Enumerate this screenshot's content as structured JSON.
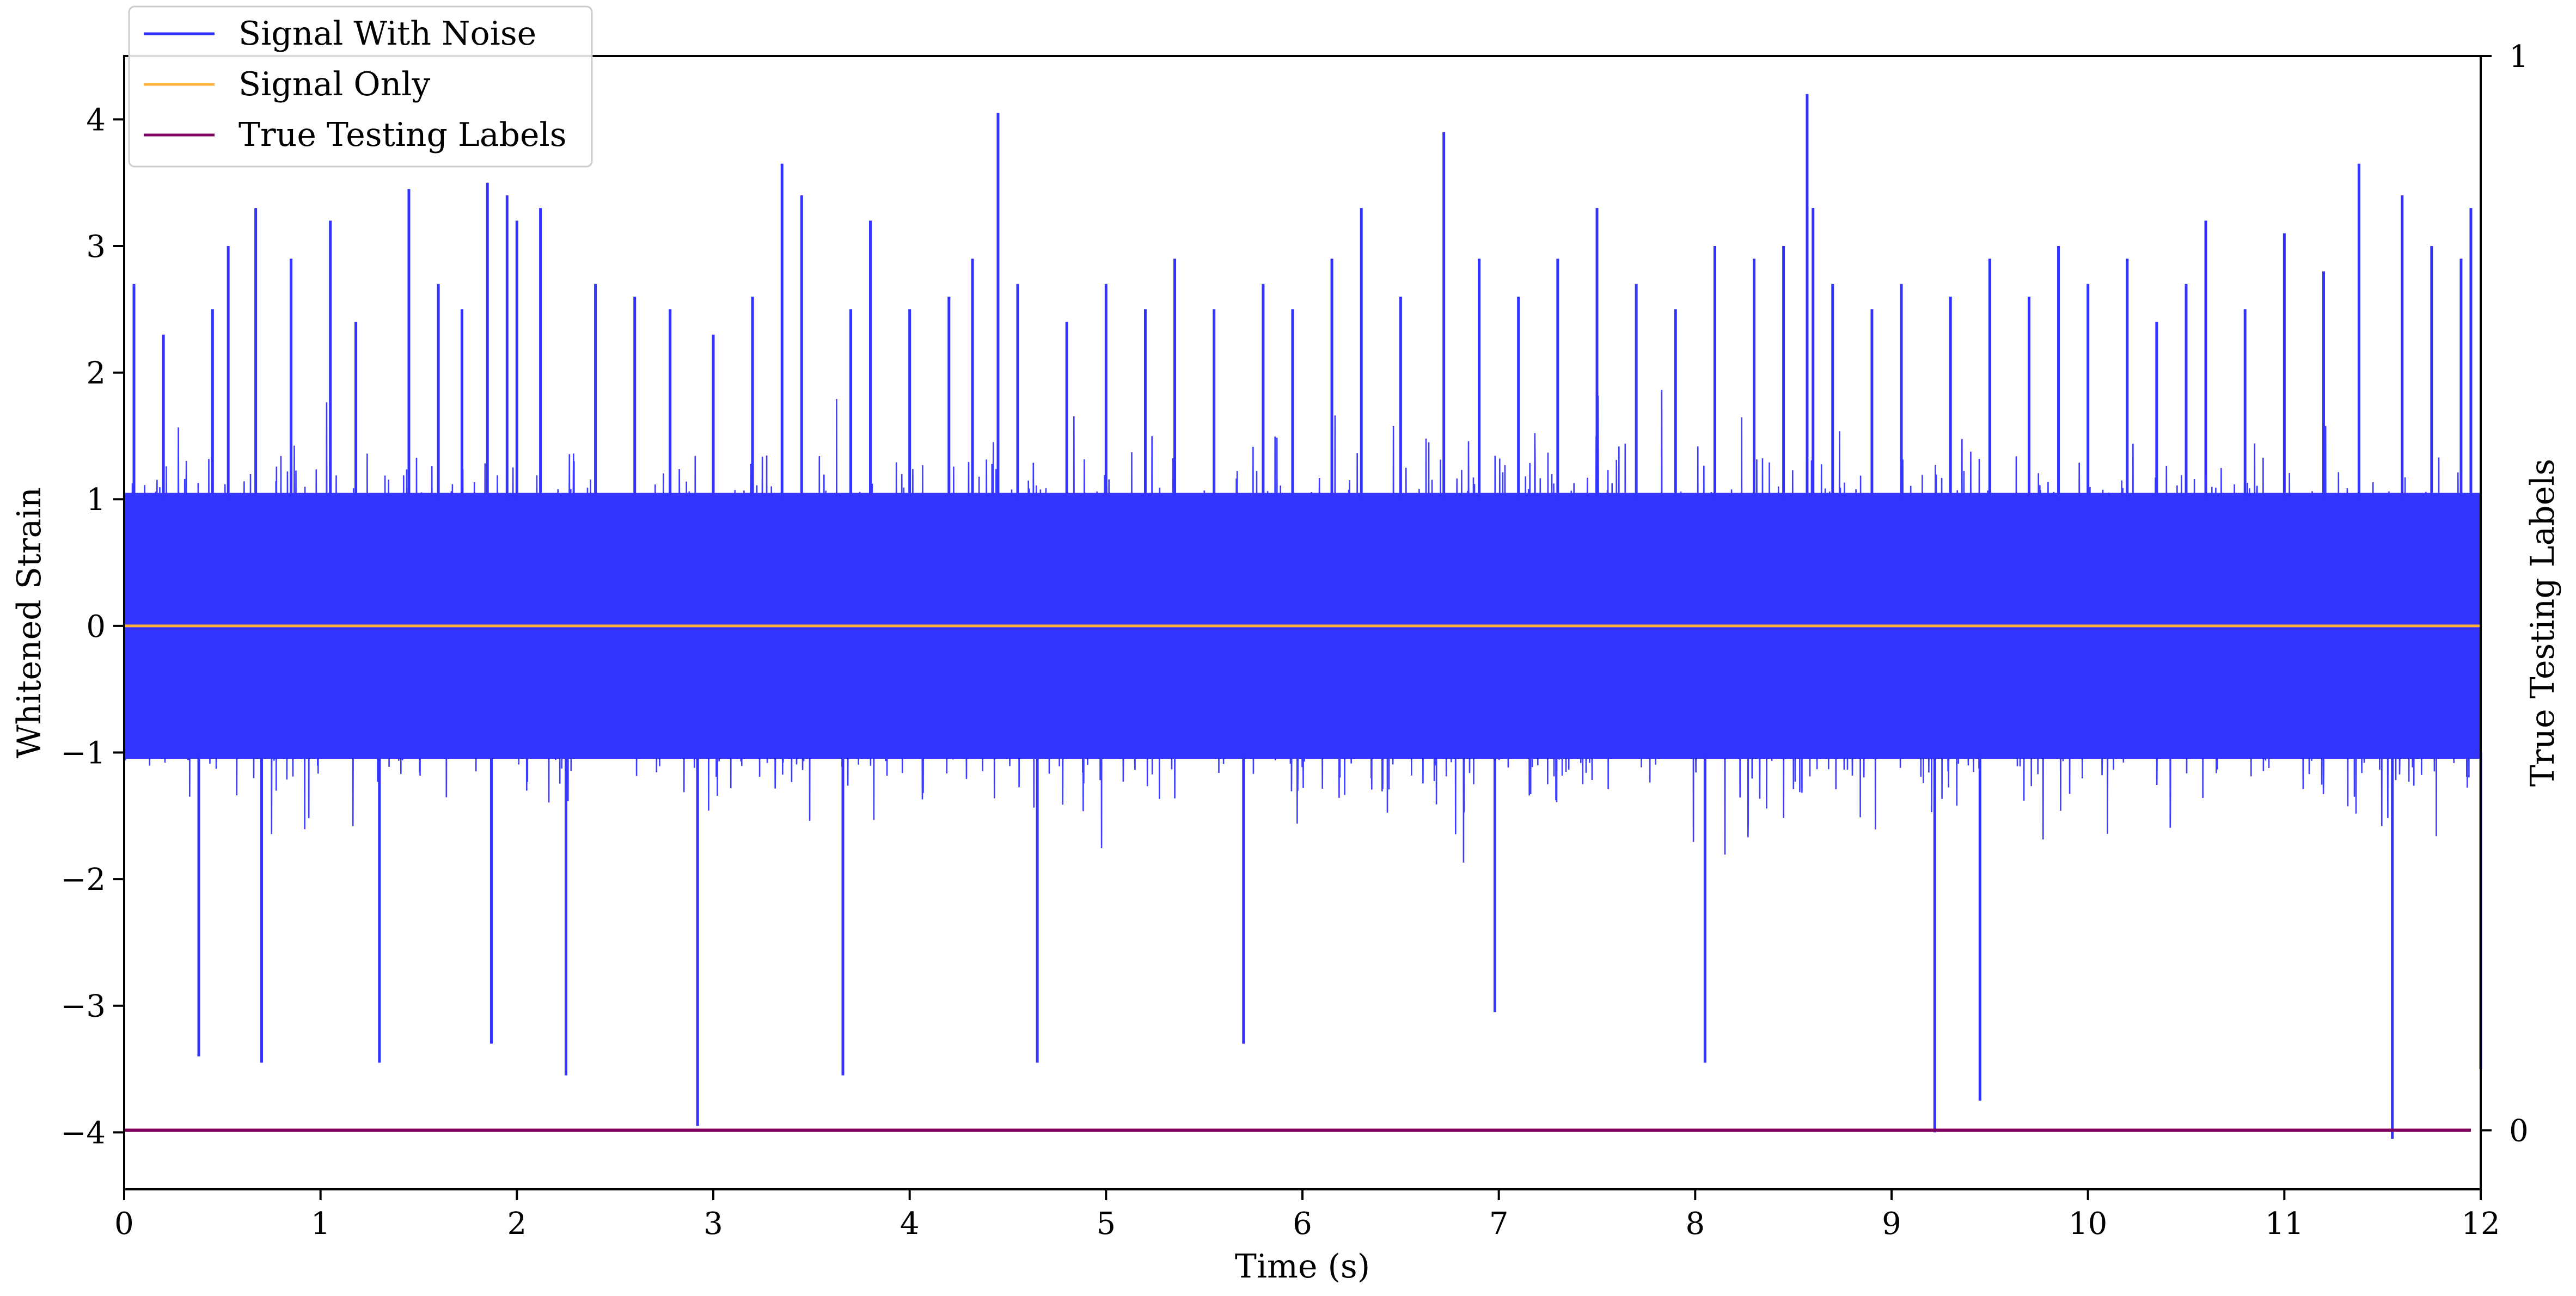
{
  "chart_data": {
    "type": "line",
    "xlabel": "Time (s)",
    "ylabel": "Whitened Strain",
    "y2label": "True Testing Labels",
    "xlim": [
      0,
      12
    ],
    "ylim": [
      -4.45,
      4.5
    ],
    "y2lim": [
      -0.055,
      1.0
    ],
    "x_ticks": [
      "0",
      "1",
      "2",
      "3",
      "4",
      "5",
      "6",
      "7",
      "8",
      "9",
      "10",
      "11",
      "12"
    ],
    "y_ticks": [
      "−4",
      "−3",
      "−2",
      "−1",
      "0",
      "1",
      "2",
      "3",
      "4"
    ],
    "y2_ticks": [
      "0",
      "1"
    ],
    "legend_position": "top-left",
    "series": [
      {
        "name": "Signal With Noise",
        "axis": "left",
        "color": "#3333ff",
        "style": "dense noise, roughly within ±2, peaks up to about 4.2 and down to about −4.05",
        "peaks": [
          [
            0.05,
            2.7
          ],
          [
            0.2,
            2.3
          ],
          [
            0.38,
            -3.4
          ],
          [
            0.45,
            2.5
          ],
          [
            0.53,
            3.0
          ],
          [
            0.67,
            3.3
          ],
          [
            0.7,
            -3.45
          ],
          [
            0.85,
            2.9
          ],
          [
            1.05,
            3.2
          ],
          [
            1.18,
            2.4
          ],
          [
            1.3,
            -3.45
          ],
          [
            1.45,
            3.45
          ],
          [
            1.6,
            2.7
          ],
          [
            1.72,
            2.5
          ],
          [
            1.85,
            3.5
          ],
          [
            1.87,
            -3.3
          ],
          [
            1.95,
            3.4
          ],
          [
            2.0,
            3.2
          ],
          [
            2.12,
            3.3
          ],
          [
            2.25,
            -3.55
          ],
          [
            2.4,
            2.7
          ],
          [
            2.6,
            2.6
          ],
          [
            2.78,
            2.5
          ],
          [
            2.92,
            -3.95
          ],
          [
            3.0,
            2.3
          ],
          [
            3.2,
            2.6
          ],
          [
            3.35,
            3.65
          ],
          [
            3.45,
            3.4
          ],
          [
            3.66,
            -3.55
          ],
          [
            3.7,
            2.5
          ],
          [
            3.8,
            3.2
          ],
          [
            4.0,
            2.5
          ],
          [
            4.2,
            2.6
          ],
          [
            4.32,
            2.9
          ],
          [
            4.45,
            4.05
          ],
          [
            4.55,
            2.7
          ],
          [
            4.65,
            -3.45
          ],
          [
            4.8,
            2.4
          ],
          [
            5.0,
            2.7
          ],
          [
            5.2,
            2.5
          ],
          [
            5.35,
            2.9
          ],
          [
            5.55,
            2.5
          ],
          [
            5.7,
            -3.3
          ],
          [
            5.8,
            2.7
          ],
          [
            5.95,
            2.5
          ],
          [
            6.15,
            2.9
          ],
          [
            6.3,
            3.3
          ],
          [
            6.5,
            2.6
          ],
          [
            6.72,
            3.9
          ],
          [
            6.9,
            2.9
          ],
          [
            6.98,
            -3.05
          ],
          [
            7.1,
            2.6
          ],
          [
            7.3,
            2.9
          ],
          [
            7.5,
            3.3
          ],
          [
            7.7,
            2.7
          ],
          [
            7.9,
            2.5
          ],
          [
            8.05,
            -3.45
          ],
          [
            8.1,
            3.0
          ],
          [
            8.3,
            2.9
          ],
          [
            8.45,
            3.0
          ],
          [
            8.57,
            4.2
          ],
          [
            8.6,
            3.3
          ],
          [
            8.7,
            2.7
          ],
          [
            8.9,
            2.5
          ],
          [
            9.05,
            2.7
          ],
          [
            9.22,
            -4.0
          ],
          [
            9.3,
            2.6
          ],
          [
            9.45,
            -3.75
          ],
          [
            9.5,
            2.9
          ],
          [
            9.7,
            2.6
          ],
          [
            9.85,
            3.0
          ],
          [
            10.0,
            2.7
          ],
          [
            10.2,
            2.9
          ],
          [
            10.35,
            2.4
          ],
          [
            10.5,
            2.7
          ],
          [
            10.6,
            3.2
          ],
          [
            10.8,
            2.5
          ],
          [
            11.0,
            3.1
          ],
          [
            11.2,
            2.8
          ],
          [
            11.38,
            3.65
          ],
          [
            11.55,
            -4.05
          ],
          [
            11.6,
            3.4
          ],
          [
            11.75,
            3.0
          ],
          [
            11.9,
            2.9
          ],
          [
            11.95,
            3.3
          ],
          [
            12.0,
            -3.5
          ]
        ]
      },
      {
        "name": "Signal Only",
        "axis": "left",
        "color": "#ffb13b",
        "x": [
          0,
          12
        ],
        "y": [
          0,
          0
        ]
      },
      {
        "name": "True Testing Labels",
        "axis": "right",
        "color": "#800060",
        "x": [
          0,
          11.95
        ],
        "y": [
          0,
          0
        ]
      }
    ]
  }
}
